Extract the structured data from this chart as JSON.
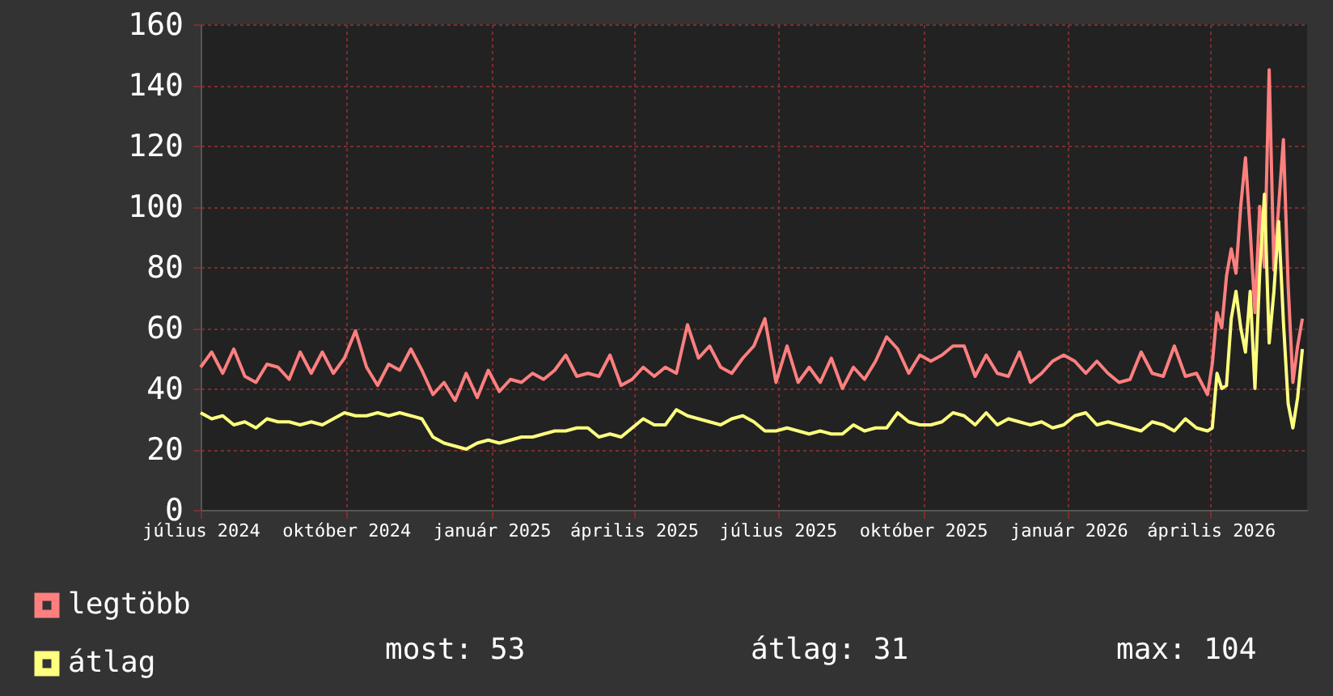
{
  "chart_data": {
    "type": "line",
    "x": [
      "2024-07-01",
      "2024-07-08",
      "2024-07-15",
      "2024-07-22",
      "2024-07-29",
      "2024-08-05",
      "2024-08-12",
      "2024-08-19",
      "2024-08-26",
      "2024-09-02",
      "2024-09-09",
      "2024-09-16",
      "2024-09-23",
      "2024-09-30",
      "2024-10-07",
      "2024-10-14",
      "2024-10-21",
      "2024-10-28",
      "2024-11-04",
      "2024-11-11",
      "2024-11-18",
      "2024-11-25",
      "2024-12-02",
      "2024-12-09",
      "2024-12-16",
      "2024-12-23",
      "2024-12-30",
      "2025-01-06",
      "2025-01-13",
      "2025-01-20",
      "2025-01-27",
      "2025-02-03",
      "2025-02-10",
      "2025-02-17",
      "2025-02-24",
      "2025-03-03",
      "2025-03-10",
      "2025-03-17",
      "2025-03-24",
      "2025-03-31",
      "2025-04-07",
      "2025-04-14",
      "2025-04-21",
      "2025-04-28",
      "2025-05-05",
      "2025-05-12",
      "2025-05-19",
      "2025-05-26",
      "2025-06-02",
      "2025-06-09",
      "2025-06-16",
      "2025-06-23",
      "2025-06-30",
      "2025-07-07",
      "2025-07-14",
      "2025-07-21",
      "2025-07-28",
      "2025-08-04",
      "2025-08-11",
      "2025-08-18",
      "2025-08-25",
      "2025-09-01",
      "2025-09-08",
      "2025-09-15",
      "2025-09-22",
      "2025-09-29",
      "2025-10-06",
      "2025-10-13",
      "2025-10-20",
      "2025-10-27",
      "2025-11-03",
      "2025-11-10",
      "2025-11-17",
      "2025-11-24",
      "2025-12-01",
      "2025-12-08",
      "2025-12-15",
      "2025-12-22",
      "2025-12-29",
      "2026-01-05",
      "2026-01-12",
      "2026-01-19",
      "2026-01-26",
      "2026-02-02",
      "2026-02-09",
      "2026-02-16",
      "2026-02-23",
      "2026-03-02",
      "2026-03-09",
      "2026-03-16",
      "2026-03-23",
      "2026-03-30",
      "2026-04-02",
      "2026-04-05",
      "2026-04-08",
      "2026-04-11",
      "2026-04-14",
      "2026-04-17",
      "2026-04-20",
      "2026-04-23",
      "2026-04-26",
      "2026-04-29",
      "2026-05-02",
      "2026-05-05",
      "2026-05-08",
      "2026-05-11",
      "2026-05-14",
      "2026-05-17",
      "2026-05-20",
      "2026-05-23",
      "2026-05-26",
      "2026-05-29"
    ],
    "series": [
      {
        "name": "legtöbb",
        "color": "#ff7f7f",
        "values": [
          47,
          52,
          45,
          53,
          44,
          42,
          48,
          47,
          43,
          52,
          45,
          52,
          45,
          50,
          59,
          47,
          41,
          48,
          46,
          53,
          46,
          38,
          42,
          36,
          45,
          37,
          46,
          39,
          43,
          42,
          45,
          43,
          46,
          51,
          44,
          45,
          44,
          51,
          41,
          43,
          47,
          44,
          47,
          45,
          61,
          50,
          54,
          47,
          45,
          50,
          54,
          63,
          42,
          54,
          42,
          47,
          42,
          50,
          40,
          47,
          43,
          49,
          57,
          53,
          45,
          51,
          49,
          51,
          54,
          54,
          44,
          51,
          45,
          44,
          52,
          42,
          45,
          49,
          51,
          49,
          45,
          49,
          45,
          42,
          43,
          52,
          45,
          44,
          54,
          44,
          45,
          38,
          48,
          65,
          60,
          77,
          86,
          78,
          100,
          116,
          92,
          65,
          100,
          80,
          145,
          79,
          100,
          122,
          74,
          42,
          54,
          63
        ]
      },
      {
        "name": "átlag",
        "color": "#ffff7f",
        "values": [
          32,
          30,
          31,
          28,
          29,
          27,
          30,
          29,
          29,
          28,
          29,
          28,
          30,
          32,
          31,
          31,
          32,
          31,
          32,
          31,
          30,
          24,
          22,
          21,
          20,
          22,
          23,
          22,
          23,
          24,
          24,
          25,
          26,
          26,
          27,
          27,
          24,
          25,
          24,
          27,
          30,
          28,
          28,
          33,
          31,
          30,
          29,
          28,
          30,
          31,
          29,
          26,
          26,
          27,
          26,
          25,
          26,
          25,
          25,
          28,
          26,
          27,
          27,
          32,
          29,
          28,
          28,
          29,
          32,
          31,
          28,
          32,
          28,
          30,
          29,
          28,
          29,
          27,
          28,
          31,
          32,
          28,
          29,
          28,
          27,
          26,
          29,
          28,
          26,
          30,
          27,
          26,
          27,
          45,
          40,
          41,
          63,
          72,
          60,
          52,
          72,
          40,
          78,
          104,
          55,
          72,
          95,
          62,
          35,
          27,
          37,
          53
        ]
      }
    ],
    "xlim": [
      "2024-07-01",
      "2026-06-01"
    ],
    "xticks": [
      {
        "value": "2024-07-01",
        "label": "július 2024"
      },
      {
        "value": "2024-10-01",
        "label": "október 2024"
      },
      {
        "value": "2025-01-01",
        "label": "január 2025"
      },
      {
        "value": "2025-04-01",
        "label": "április 2025"
      },
      {
        "value": "2025-07-01",
        "label": "július 2025"
      },
      {
        "value": "2025-10-01",
        "label": "október 2025"
      },
      {
        "value": "2026-01-01",
        "label": "január 2026"
      },
      {
        "value": "2026-04-01",
        "label": "április 2026"
      }
    ],
    "ylim": [
      0,
      160
    ],
    "yticks": [
      0,
      20,
      40,
      60,
      80,
      100,
      120,
      140,
      160
    ],
    "grid": true,
    "legend": "bottom left",
    "line_style": "solid",
    "marker": "none",
    "annotations": [
      "most: 53",
      "átlag: 31",
      "max: 104"
    ]
  }
}
